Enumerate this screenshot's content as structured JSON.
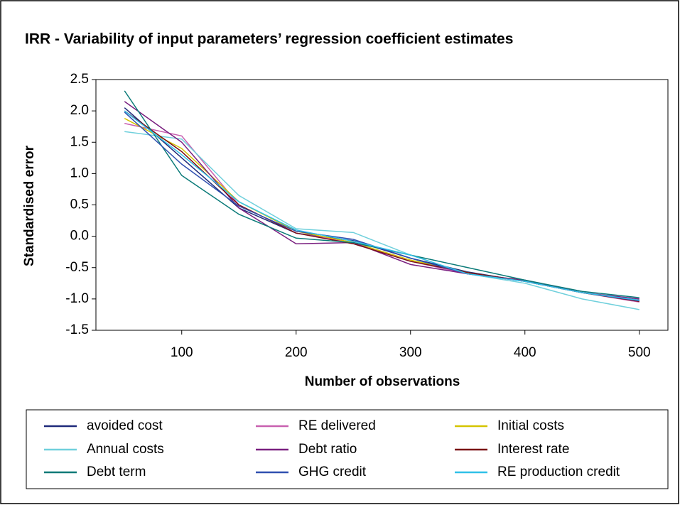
{
  "chart_data": {
    "type": "line",
    "title": "IRR - Variability of input parameters’ regression coefficient estimates",
    "xlabel": "Number of observations",
    "ylabel": "Standardised error",
    "x": [
      50,
      100,
      150,
      200,
      250,
      300,
      350,
      400,
      450,
      500
    ],
    "xlim": [
      25,
      525
    ],
    "xticks": [
      100,
      200,
      300,
      400,
      500
    ],
    "ylim": [
      -1.5,
      2.5
    ],
    "yticks": [
      2.5,
      {
        "value": 2,
        "label": "2.0"
      },
      1.5,
      {
        "value": 1,
        "label": "1.0"
      },
      0.5,
      {
        "value": 0,
        "label": "0.0"
      },
      -0.5,
      {
        "value": -1,
        "label": "-1.0"
      },
      -1.5
    ],
    "series": [
      {
        "name": "avoided cost",
        "color": "#1f2a7a",
        "values": [
          2.05,
          1.25,
          0.45,
          0.05,
          -0.07,
          -0.35,
          -0.57,
          -0.72,
          -0.9,
          -1.02
        ]
      },
      {
        "name": "RE delivered",
        "color": "#c860b0",
        "values": [
          1.8,
          1.6,
          0.5,
          0.05,
          -0.1,
          -0.4,
          -0.6,
          -0.72,
          -0.9,
          -1.05
        ]
      },
      {
        "name": "Initial costs",
        "color": "#d4c400",
        "values": [
          1.88,
          1.4,
          0.55,
          0.08,
          -0.1,
          -0.38,
          -0.58,
          -0.72,
          -0.9,
          -1.03
        ]
      },
      {
        "name": "Annual costs",
        "color": "#70d0dc",
        "values": [
          1.67,
          1.55,
          0.65,
          0.12,
          0.06,
          -0.3,
          -0.6,
          -0.75,
          -1.0,
          -1.17
        ]
      },
      {
        "name": "Debt ratio",
        "color": "#7a2080",
        "values": [
          2.15,
          1.5,
          0.45,
          -0.12,
          -0.1,
          -0.45,
          -0.6,
          -0.7,
          -0.9,
          -1.0
        ]
      },
      {
        "name": "Interest rate",
        "color": "#7a0e14",
        "values": [
          2.0,
          1.35,
          0.5,
          0.05,
          -0.12,
          -0.4,
          -0.58,
          -0.72,
          -0.9,
          -1.04
        ]
      },
      {
        "name": "Debt term",
        "color": "#0a7a78",
        "values": [
          2.32,
          0.97,
          0.35,
          -0.03,
          -0.1,
          -0.3,
          -0.5,
          -0.7,
          -0.88,
          -0.98
        ]
      },
      {
        "name": "GHG credit",
        "color": "#3050b0",
        "values": [
          1.98,
          1.15,
          0.48,
          0.08,
          -0.05,
          -0.35,
          -0.6,
          -0.72,
          -0.9,
          -1.03
        ]
      },
      {
        "name": "RE production credit",
        "color": "#30c0e8",
        "values": [
          2.0,
          1.3,
          0.55,
          0.1,
          -0.08,
          -0.3,
          -0.6,
          -0.72,
          -0.9,
          -1.02
        ]
      }
    ]
  }
}
